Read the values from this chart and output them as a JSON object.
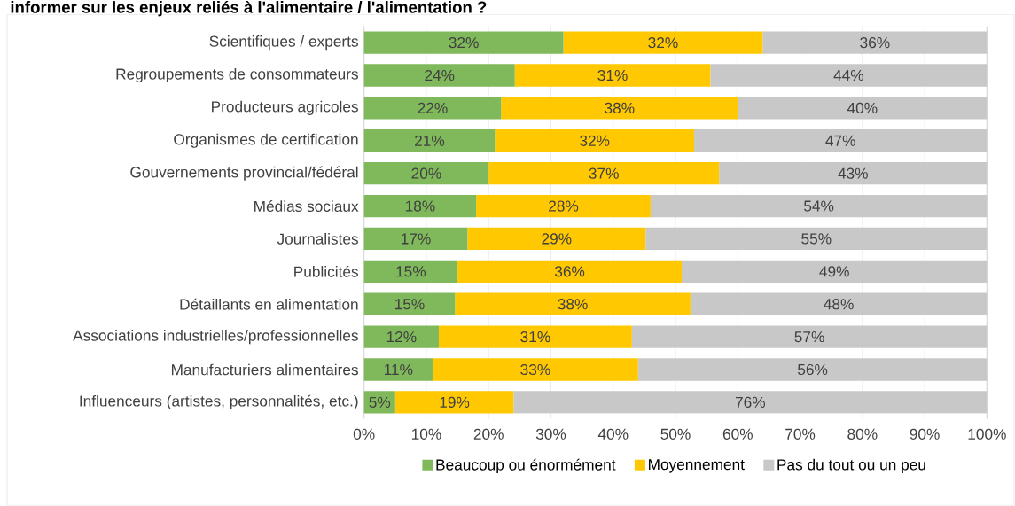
{
  "chart_data": {
    "type": "bar",
    "orientation": "horizontal",
    "stacked": true,
    "title": "informer sur les enjeux reliés à l'alimentaire / l'alimentation ?",
    "categories": [
      "Scientifiques / experts",
      "Regroupements de consommateurs",
      "Producteurs agricoles",
      "Organismes de certification",
      "Gouvernements provincial/fédéral",
      "Médias sociaux",
      "Journalistes",
      "Publicités",
      "Détaillants en alimentation",
      "Associations industrielles/professionnelles",
      "Manufacturiers alimentaires",
      "Influenceurs (artistes, personnalités, etc.)"
    ],
    "series": [
      {
        "name": "Beaucoup ou énormément",
        "color": "#7fb95b",
        "values": [
          32,
          24.2,
          22,
          21,
          20,
          18,
          16.6,
          15,
          14.6,
          12,
          11,
          5
        ],
        "value_labels": [
          "32%",
          "24%",
          "22%",
          "21%",
          "20%",
          "18%",
          "17%",
          "15%",
          "15%",
          "12%",
          "11%",
          "5%"
        ]
      },
      {
        "name": "Moyennement",
        "color": "#ffc800",
        "values": [
          32,
          31.4,
          38,
          32,
          37,
          28,
          28.6,
          36,
          37.8,
          31,
          33,
          19
        ],
        "value_labels": [
          "32%",
          "31%",
          "38%",
          "32%",
          "37%",
          "28%",
          "29%",
          "36%",
          "38%",
          "31%",
          "33%",
          "19%"
        ]
      },
      {
        "name": "Pas du tout ou un peu",
        "color": "#c8c8c8",
        "values": [
          36,
          44.4,
          40,
          47,
          43,
          54,
          54.8,
          49,
          47.6,
          57,
          56,
          76
        ],
        "value_labels": [
          "36%",
          "44%",
          "40%",
          "47%",
          "43%",
          "54%",
          "55%",
          "49%",
          "48%",
          "57%",
          "56%",
          "76%"
        ]
      }
    ],
    "xlim": [
      0,
      100
    ],
    "xticks": [
      {
        "value": 0,
        "label": "0%"
      },
      {
        "value": 10,
        "label": "10%"
      },
      {
        "value": 20,
        "label": "20%"
      },
      {
        "value": 30,
        "label": "30%"
      },
      {
        "value": 40,
        "label": "40%"
      },
      {
        "value": 50,
        "label": "50%"
      },
      {
        "value": 60,
        "label": "60%"
      },
      {
        "value": 70,
        "label": "70%"
      },
      {
        "value": 80,
        "label": "80%"
      },
      {
        "value": 90,
        "label": "90%"
      },
      {
        "value": 100,
        "label": "100%"
      }
    ],
    "grid": "x",
    "legend": "bottom"
  }
}
